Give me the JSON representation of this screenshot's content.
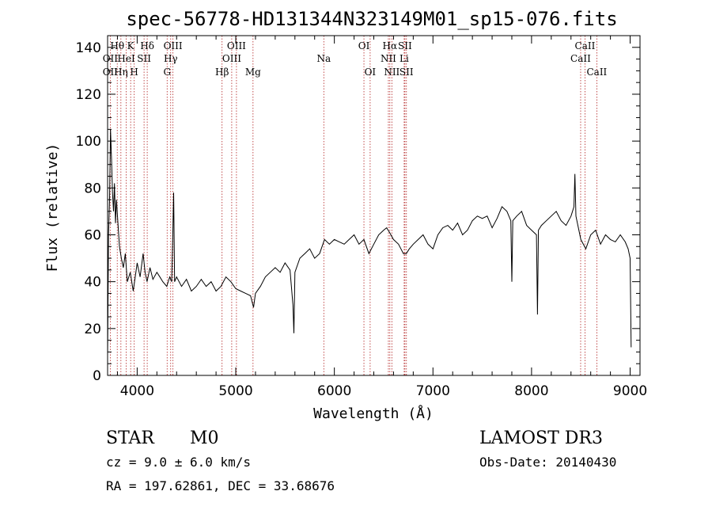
{
  "chart_data": {
    "type": "line",
    "title": "spec-56778-HD131344N323149M01_sp15-076.fits",
    "xlabel": "Wavelength (Å)",
    "ylabel": "Flux (relative)",
    "xlim": [
      3700,
      9100
    ],
    "ylim": [
      0,
      145
    ],
    "xticks": [
      4000,
      5000,
      6000,
      7000,
      8000,
      9000
    ],
    "yticks": [
      0,
      20,
      40,
      60,
      80,
      100,
      120,
      140
    ],
    "grid": false,
    "series": [
      {
        "x": [
          3700,
          3710,
          3720,
          3730,
          3740,
          3750,
          3760,
          3770,
          3780,
          3790,
          3800,
          3820,
          3840,
          3860,
          3880,
          3900,
          3930,
          3960,
          4000,
          4030,
          4060,
          4080,
          4100,
          4130,
          4160,
          4200,
          4230,
          4260,
          4300,
          4330,
          4350,
          4360,
          4370,
          4380,
          4400,
          4450,
          4500,
          4550,
          4600,
          4650,
          4700,
          4750,
          4800,
          4850,
          4900,
          4950,
          5000,
          5050,
          5100,
          5150,
          5180,
          5200,
          5250,
          5300,
          5350,
          5400,
          5450,
          5500,
          5550,
          5580,
          5590,
          5600,
          5650,
          5700,
          5750,
          5800,
          5850,
          5900,
          5950,
          6000,
          6050,
          6100,
          6150,
          6200,
          6250,
          6300,
          6350,
          6400,
          6450,
          6500,
          6530,
          6560,
          6600,
          6650,
          6700,
          6730,
          6760,
          6800,
          6850,
          6900,
          6950,
          7000,
          7050,
          7100,
          7150,
          7200,
          7250,
          7300,
          7350,
          7400,
          7450,
          7500,
          7550,
          7600,
          7650,
          7700,
          7750,
          7790,
          7800,
          7810,
          7850,
          7900,
          7950,
          8000,
          8050,
          8060,
          8070,
          8100,
          8150,
          8200,
          8250,
          8300,
          8350,
          8400,
          8430,
          8440,
          8450,
          8500,
          8550,
          8600,
          8650,
          8700,
          8750,
          8800,
          8850,
          8900,
          8950,
          8980,
          9000,
          9010
        ],
        "values": [
          8,
          60,
          75,
          105,
          92,
          78,
          70,
          82,
          65,
          75,
          68,
          55,
          50,
          46,
          52,
          40,
          44,
          36,
          48,
          42,
          52,
          44,
          40,
          46,
          41,
          44,
          42,
          40,
          38,
          42,
          40,
          58,
          78,
          40,
          42,
          38,
          41,
          36,
          38,
          41,
          38,
          40,
          36,
          38,
          42,
          40,
          37,
          36,
          35,
          34,
          29,
          35,
          38,
          42,
          44,
          46,
          44,
          48,
          45,
          30,
          18,
          44,
          50,
          52,
          54,
          50,
          52,
          58,
          56,
          58,
          57,
          56,
          58,
          60,
          56,
          58,
          52,
          56,
          60,
          62,
          63,
          61,
          58,
          56,
          52,
          52,
          54,
          56,
          58,
          60,
          56,
          54,
          60,
          63,
          64,
          62,
          65,
          60,
          62,
          66,
          68,
          67,
          68,
          63,
          67,
          72,
          70,
          66,
          40,
          66,
          68,
          70,
          64,
          62,
          60,
          26,
          62,
          64,
          66,
          68,
          70,
          66,
          64,
          68,
          72,
          86,
          68,
          58,
          54,
          60,
          62,
          56,
          60,
          58,
          57,
          60,
          57,
          54,
          50,
          12
        ]
      }
    ],
    "emission_lines": [
      {
        "label": "Hα",
        "x": 6563
      },
      {
        "label": "NII",
        "x": 6583
      },
      {
        "label": "SII",
        "x": 6716
      },
      {
        "label": "Li",
        "x": 6708
      },
      {
        "label": "CaII",
        "x": 8498
      },
      {
        "label": "CaII",
        "x": 8542
      },
      {
        "label": "CaII",
        "x": 8662
      }
    ]
  },
  "line_labels": [
    {
      "text": "Hθ",
      "x": 3798,
      "row": 1
    },
    {
      "text": "K",
      "x": 3934,
      "row": 1
    },
    {
      "text": "Hδ",
      "x": 4102,
      "row": 1
    },
    {
      "text": "OIII",
      "x": 4363,
      "row": 1
    },
    {
      "text": "OIII",
      "x": 5007,
      "row": 1
    },
    {
      "text": "OI",
      "x": 6300,
      "row": 1
    },
    {
      "text": "Hα",
      "x": 6563,
      "row": 1
    },
    {
      "text": "SII",
      "x": 6716,
      "row": 1
    },
    {
      "text": "CaII",
      "x": 8542,
      "row": 1
    },
    {
      "text": "OII",
      "x": 3727,
      "row": 2
    },
    {
      "text": "HeI",
      "x": 3889,
      "row": 2
    },
    {
      "text": "SII",
      "x": 4070,
      "row": 2
    },
    {
      "text": "Hγ",
      "x": 4340,
      "row": 2
    },
    {
      "text": "OIII",
      "x": 4959,
      "row": 2
    },
    {
      "text": "Na",
      "x": 5893,
      "row": 2
    },
    {
      "text": "NII",
      "x": 6548,
      "row": 2
    },
    {
      "text": "Li",
      "x": 6708,
      "row": 2
    },
    {
      "text": "CaII",
      "x": 8498,
      "row": 2
    },
    {
      "text": "OII",
      "x": 3727,
      "row": 3
    },
    {
      "text": "Hη",
      "x": 3835,
      "row": 3
    },
    {
      "text": "H",
      "x": 3970,
      "row": 3
    },
    {
      "text": "G",
      "x": 4304,
      "row": 3
    },
    {
      "text": "Hβ",
      "x": 4861,
      "row": 3
    },
    {
      "text": "Mg",
      "x": 5175,
      "row": 3
    },
    {
      "text": "OI",
      "x": 6363,
      "row": 3
    },
    {
      "text": "NII",
      "x": 6583,
      "row": 3
    },
    {
      "text": "SII",
      "x": 6731,
      "row": 3
    },
    {
      "text": "CaII",
      "x": 8662,
      "row": 3
    }
  ],
  "marker_lines": [
    3727,
    3798,
    3835,
    3889,
    3934,
    3970,
    4070,
    4102,
    4304,
    4340,
    4363,
    4861,
    4959,
    5007,
    5175,
    5893,
    6300,
    6363,
    6548,
    6563,
    6583,
    6708,
    6716,
    6731,
    8498,
    8542,
    8662
  ],
  "info": {
    "object_class": "STAR",
    "subclass": "M0",
    "survey": "LAMOST DR3",
    "cz": "cz = 9.0 ± 6.0 km/s",
    "obs_date": "Obs-Date: 20140430",
    "radec": "RA = 197.62861, DEC =  33.68676"
  },
  "colors": {
    "spectrum": "#000000",
    "marker_line": "#b22222",
    "background": "#ffffff"
  }
}
